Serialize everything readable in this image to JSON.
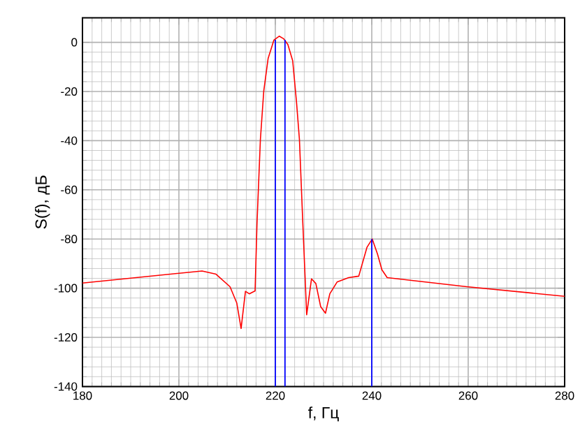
{
  "chart_data": {
    "type": "line",
    "xlabel": "f, Гц",
    "ylabel": "S(f), дБ",
    "xlim": [
      180,
      280
    ],
    "ylim": [
      -140,
      10
    ],
    "xticks": [
      180,
      200,
      220,
      240,
      260,
      280
    ],
    "yticks": [
      -140,
      -120,
      -100,
      -80,
      -60,
      -40,
      -20,
      0
    ],
    "grid": true,
    "series": [
      {
        "color": "#ff0000",
        "x": [
          180,
          204.8,
          207.7,
          210.6,
          212.0,
          212.9,
          213.8,
          214.6,
          215.8,
          216.2,
          216.9,
          217.6,
          218.5,
          219.7,
          220.8,
          221.7,
          222.6,
          223.6,
          224.4,
          225.0,
          225.7,
          226.5,
          227.5,
          228.4,
          229.4,
          230.4,
          231.3,
          232.8,
          235.2,
          237.3,
          239.0,
          240.1,
          241.2,
          242.1,
          243.2,
          259.7,
          280
        ],
        "values": [
          -97.9,
          -93.0,
          -94.3,
          -99.4,
          -106,
          -116.4,
          -101.3,
          -102.3,
          -101.1,
          -73.6,
          -39.6,
          -19.8,
          -6.6,
          0.9,
          2.5,
          1.5,
          -0.9,
          -7.5,
          -24.5,
          -39.6,
          -73.6,
          -110.8,
          -96.2,
          -98.1,
          -107.5,
          -110.2,
          -102.3,
          -97.5,
          -95.7,
          -95.1,
          -83.4,
          -80,
          -86.2,
          -92.5,
          -95.7,
          -99.4,
          -103.3
        ]
      },
      {
        "type": "bar",
        "color": "#0000ff",
        "x": [
          220,
          222,
          240
        ],
        "base": [
          -140,
          -140,
          -140
        ],
        "values": [
          141,
          141,
          60
        ]
      }
    ]
  }
}
